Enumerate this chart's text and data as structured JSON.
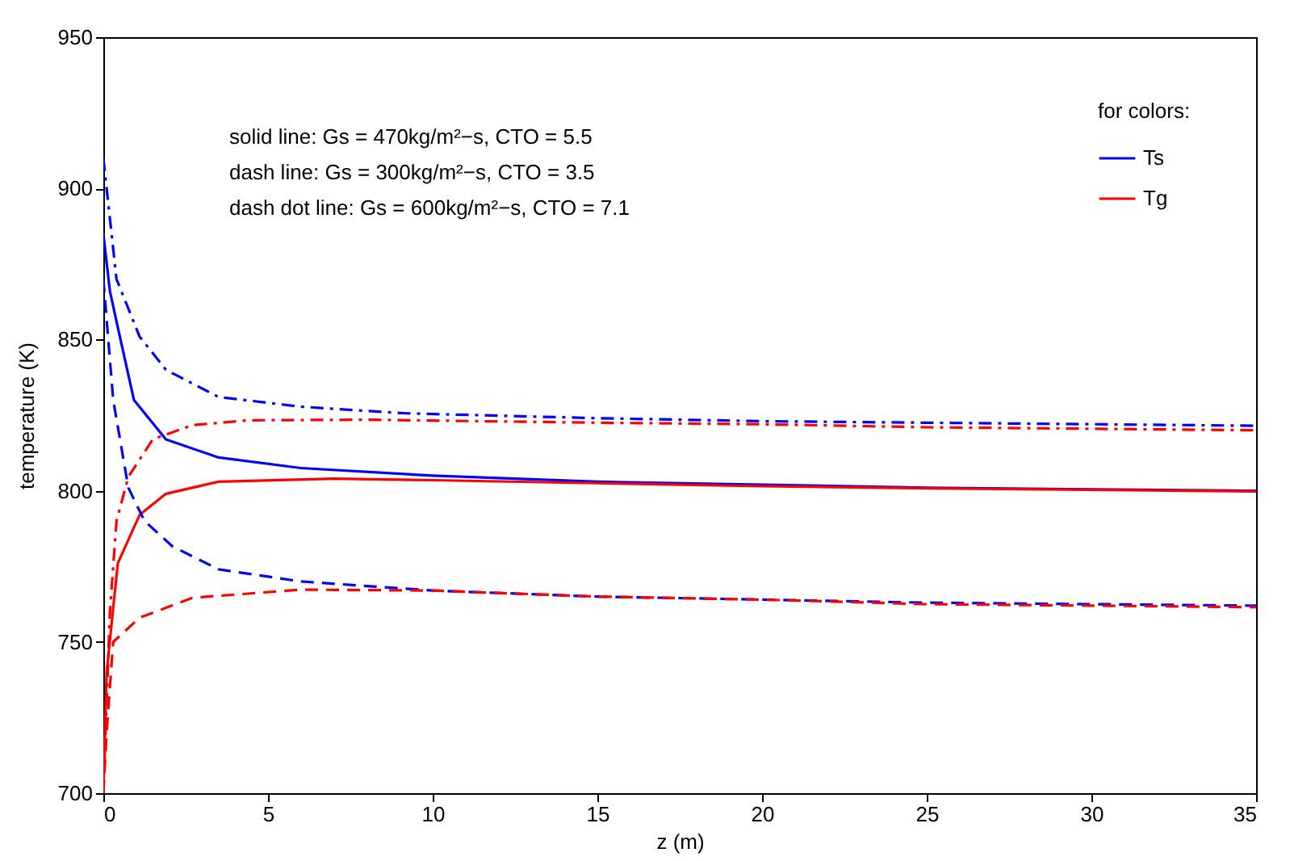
{
  "chart_data": {
    "type": "line",
    "xlabel": "z (m)",
    "ylabel": "temperature (K)",
    "legend_title": "for colors:",
    "legend": "top right",
    "grid": false,
    "annotations": [
      "solid line:  Gs = 470kg/m²−s, CTO = 5.5",
      "dash line:  Gs = 300kg/m²−s, CTO = 3.5",
      "dash dot line:    Gs = 600kg/m²−s, CTO = 7.1"
    ],
    "xlim": [
      0,
      35
    ],
    "xticks": [
      0,
      5,
      10,
      15,
      20,
      25,
      30,
      35
    ],
    "ylim": [
      700,
      950
    ],
    "yticks": [
      700,
      750,
      800,
      850,
      900,
      950
    ],
    "series": [
      {
        "name": "Ts",
        "color": "#0000ff",
        "line_style": "solid",
        "x": [
          0,
          0.2,
          0.44,
          0.93,
          1.9,
          3.5,
          6,
          10,
          15,
          20,
          25,
          35
        ],
        "values": [
          885,
          866,
          854,
          830,
          817,
          811,
          807.5,
          805,
          803,
          802,
          801,
          800
        ]
      },
      {
        "name": "Tg",
        "color": "#ff0000",
        "line_style": "solid",
        "x": [
          0,
          0.1,
          0.44,
          1.1,
          1.9,
          3.5,
          7,
          10,
          15,
          20,
          25,
          35
        ],
        "values": [
          700,
          740,
          776,
          792,
          799,
          803,
          804,
          803.5,
          802.5,
          801.5,
          800.8,
          799.8
        ]
      },
      {
        "color": "#0000ff",
        "line_style": "dashed",
        "x": [
          0,
          0.3,
          0.76,
          1.25,
          2.1,
          3.5,
          6,
          10,
          15,
          20,
          25,
          35
        ],
        "values": [
          870,
          830,
          801,
          790,
          781.6,
          774,
          770,
          767,
          765,
          764,
          763,
          762
        ]
      },
      {
        "color": "#ff0000",
        "line_style": "dashed",
        "x": [
          0,
          0.1,
          0.3,
          1.1,
          2.7,
          6,
          10,
          15,
          20,
          25,
          35
        ],
        "values": [
          700,
          720,
          750,
          758,
          764.6,
          767.3,
          767,
          765,
          764,
          762.5,
          761.5
        ]
      },
      {
        "color": "#0000ff",
        "line_style": "dashdot",
        "x": [
          0,
          0.4,
          1.1,
          1.9,
          3.5,
          6,
          9.2,
          15,
          20,
          25,
          35
        ],
        "values": [
          910,
          870,
          851,
          840,
          831,
          827.8,
          825.6,
          824,
          823,
          822.5,
          821.5
        ]
      },
      {
        "color": "#ff0000",
        "line_style": "dashdot",
        "x": [
          0,
          0.2,
          0.4,
          0.76,
          1.5,
          2.7,
          4.4,
          8,
          15,
          20,
          25,
          35
        ],
        "values": [
          700,
          760,
          790,
          804.6,
          817,
          821.7,
          823.3,
          823.5,
          822.5,
          822,
          821,
          820
        ]
      }
    ]
  }
}
